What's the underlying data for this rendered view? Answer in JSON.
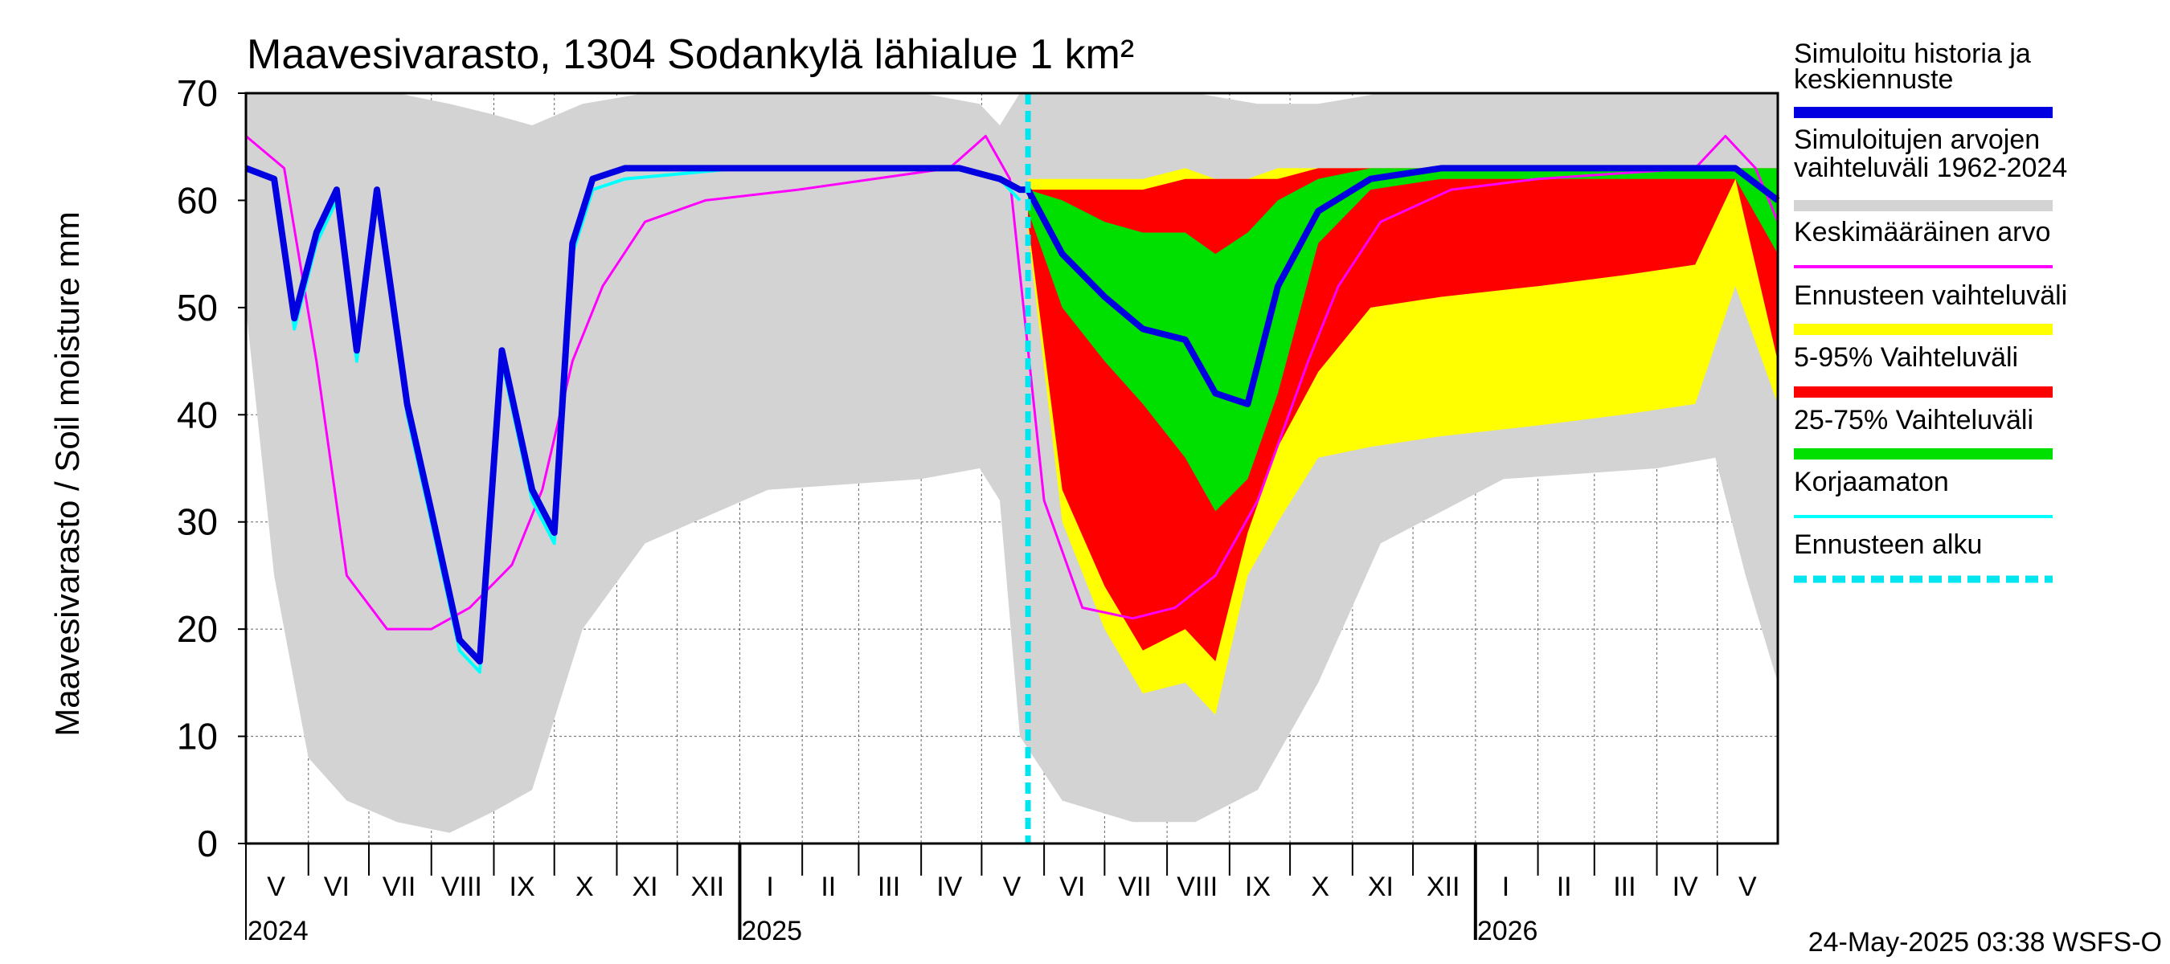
{
  "chart_data": {
    "type": "area",
    "title": "Maavesivarasto, 1304 Sodankylä lähialue 1 km²",
    "ylabel": "Maavesivarasto / Soil moisture   mm",
    "ylim": [
      0,
      70
    ],
    "yticks": [
      "0",
      "10",
      "20",
      "30",
      "40",
      "50",
      "60",
      "70"
    ],
    "xlim": [
      "2024-05-01",
      "2026-05-31"
    ],
    "forecast_start": "2025-05-24",
    "month_labels": [
      {
        "label": "V",
        "date": "2024-05-16"
      },
      {
        "label": "VI",
        "date": "2024-06-15"
      },
      {
        "label": "VII",
        "date": "2024-07-16"
      },
      {
        "label": "VIII",
        "date": "2024-08-16"
      },
      {
        "label": "IX",
        "date": "2024-09-15"
      },
      {
        "label": "X",
        "date": "2024-10-16"
      },
      {
        "label": "XI",
        "date": "2024-11-15"
      },
      {
        "label": "XII",
        "date": "2024-12-16"
      },
      {
        "label": "I",
        "date": "2025-01-16"
      },
      {
        "label": "II",
        "date": "2025-02-14"
      },
      {
        "label": "III",
        "date": "2025-03-16"
      },
      {
        "label": "IV",
        "date": "2025-04-15"
      },
      {
        "label": "V",
        "date": "2025-05-16"
      },
      {
        "label": "VI",
        "date": "2025-06-15"
      },
      {
        "label": "VII",
        "date": "2025-07-16"
      },
      {
        "label": "VIII",
        "date": "2025-08-16"
      },
      {
        "label": "IX",
        "date": "2025-09-15"
      },
      {
        "label": "X",
        "date": "2025-10-16"
      },
      {
        "label": "XI",
        "date": "2025-11-15"
      },
      {
        "label": "XII",
        "date": "2025-12-16"
      },
      {
        "label": "I",
        "date": "2026-01-16"
      },
      {
        "label": "II",
        "date": "2026-02-14"
      },
      {
        "label": "III",
        "date": "2026-03-16"
      },
      {
        "label": "IV",
        "date": "2026-04-15"
      },
      {
        "label": "V",
        "date": "2026-05-16"
      }
    ],
    "year_labels": [
      {
        "label": "2024",
        "date": "2024-05-01"
      },
      {
        "label": "2025",
        "date": "2025-01-01"
      },
      {
        "label": "2026",
        "date": "2026-01-01"
      }
    ],
    "legend": [
      {
        "label": "Simuloitu historia ja keskiennuste",
        "color": "#0000e0",
        "style": "thick"
      },
      {
        "label": "Simuloitujen arvojen vaihteluväli 1962-2024",
        "color": "#d3d3d3",
        "style": "thick"
      },
      {
        "label": "Keskimääräinen arvo",
        "color": "#ff00ff",
        "style": "thin"
      },
      {
        "label": "Ennusteen vaihteluväli",
        "color": "#ffff00",
        "style": "thick"
      },
      {
        "label": "5-95% Vaihteluväli",
        "color": "#ff0000",
        "style": "thick"
      },
      {
        "label": "25-75% Vaihteluväli",
        "color": "#00e000",
        "style": "thick"
      },
      {
        "label": "Korjaamaton",
        "color": "#00ffff",
        "style": "thin"
      },
      {
        "label": "Ennusteen alku",
        "color": "#00e5ee",
        "style": "dashed"
      }
    ],
    "series": [
      {
        "name": "Simuloitujen arvojen vaihteluväli 1962-2024",
        "color": "#d3d3d3",
        "kind": "band",
        "x": [
          "2024-05-01",
          "2024-05-15",
          "2024-06-01",
          "2024-06-20",
          "2024-07-15",
          "2024-08-10",
          "2024-09-01",
          "2024-09-20",
          "2024-10-15",
          "2024-11-15",
          "2025-01-15",
          "2025-04-01",
          "2025-04-30",
          "2025-05-10",
          "2025-05-20",
          "2025-06-10",
          "2025-07-15",
          "2025-08-15",
          "2025-09-15",
          "2025-10-15",
          "2025-11-15",
          "2026-01-15",
          "2026-04-01",
          "2026-04-30",
          "2026-05-15",
          "2026-05-31"
        ],
        "low": [
          50,
          25,
          8,
          4,
          2,
          1,
          3,
          5,
          20,
          28,
          33,
          34,
          35,
          32,
          10,
          4,
          2,
          2,
          5,
          15,
          28,
          34,
          35,
          36,
          25,
          15
        ],
        "high": [
          70,
          70,
          70,
          70,
          70,
          69,
          68,
          67,
          69,
          70,
          70,
          70,
          69,
          67,
          70,
          70,
          70,
          70,
          69,
          69,
          70,
          70,
          70,
          70,
          70,
          70
        ]
      },
      {
        "name": "Ennusteen vaihteluväli",
        "color": "#ffff00",
        "kind": "band",
        "x": [
          "2025-05-24",
          "2025-06-10",
          "2025-07-01",
          "2025-07-20",
          "2025-08-10",
          "2025-08-25",
          "2025-09-10",
          "2025-09-25",
          "2025-10-15",
          "2025-11-10",
          "2025-12-15",
          "2026-02-01",
          "2026-03-15",
          "2026-04-20",
          "2026-05-10",
          "2026-05-31"
        ],
        "low": [
          57,
          30,
          20,
          14,
          15,
          12,
          25,
          30,
          36,
          37,
          38,
          39,
          40,
          41,
          52,
          41
        ],
        "high": [
          62,
          62,
          62,
          62,
          63,
          62,
          62,
          63,
          63,
          63,
          63,
          63,
          63,
          63,
          63,
          63
        ]
      },
      {
        "name": "5-95% Vaihteluväli",
        "color": "#ff0000",
        "kind": "band",
        "x": [
          "2025-05-24",
          "2025-06-10",
          "2025-07-01",
          "2025-07-20",
          "2025-08-10",
          "2025-08-25",
          "2025-09-10",
          "2025-09-25",
          "2025-10-15",
          "2025-11-10",
          "2025-12-15",
          "2026-02-01",
          "2026-03-15",
          "2026-04-20",
          "2026-05-10",
          "2026-05-31"
        ],
        "low": [
          58,
          33,
          24,
          18,
          20,
          17,
          29,
          37,
          44,
          50,
          51,
          52,
          53,
          54,
          62,
          45
        ],
        "high": [
          61,
          61,
          61,
          61,
          62,
          62,
          62,
          62,
          63,
          63,
          63,
          63,
          63,
          63,
          63,
          63
        ]
      },
      {
        "name": "25-75% Vaihteluväli",
        "color": "#00e000",
        "kind": "band",
        "x": [
          "2025-05-24",
          "2025-06-10",
          "2025-07-01",
          "2025-07-20",
          "2025-08-10",
          "2025-08-25",
          "2025-09-10",
          "2025-09-25",
          "2025-10-15",
          "2025-11-10",
          "2025-12-15",
          "2026-02-01",
          "2026-03-15",
          "2026-04-20",
          "2026-05-10",
          "2026-05-31"
        ],
        "low": [
          59,
          50,
          45,
          41,
          36,
          31,
          34,
          42,
          56,
          61,
          62,
          62,
          62,
          62,
          62,
          55
        ],
        "high": [
          61,
          60,
          58,
          57,
          57,
          55,
          57,
          60,
          62,
          63,
          63,
          63,
          63,
          63,
          63,
          63
        ]
      },
      {
        "name": "Keskimääräinen arvo",
        "color": "#ff00ff",
        "kind": "line",
        "width": 3,
        "x": [
          "2024-05-01",
          "2024-05-20",
          "2024-06-05",
          "2024-06-20",
          "2024-07-10",
          "2024-08-01",
          "2024-08-20",
          "2024-09-10",
          "2024-09-25",
          "2024-10-10",
          "2024-10-25",
          "2024-11-15",
          "2024-12-15",
          "2025-01-30",
          "2025-04-15",
          "2025-05-03",
          "2025-05-15",
          "2025-06-01",
          "2025-06-20",
          "2025-07-15",
          "2025-08-05",
          "2025-08-25",
          "2025-09-15",
          "2025-10-10",
          "2025-10-25",
          "2025-11-15",
          "2025-12-20",
          "2026-02-01",
          "2026-04-20",
          "2026-05-05",
          "2026-05-20",
          "2026-05-31"
        ],
        "y": [
          66,
          63,
          45,
          25,
          20,
          20,
          22,
          26,
          33,
          45,
          52,
          58,
          60,
          61,
          63,
          66,
          62,
          32,
          22,
          21,
          22,
          25,
          32,
          45,
          52,
          58,
          61,
          62,
          63,
          66,
          63,
          58
        ]
      },
      {
        "name": "Korjaamaton",
        "color": "#00ffff",
        "kind": "line",
        "width": 4,
        "x": [
          "2024-05-01",
          "2024-05-15",
          "2024-05-25",
          "2024-06-05",
          "2024-06-15",
          "2024-06-25",
          "2024-07-05",
          "2024-07-20",
          "2024-08-01",
          "2024-08-15",
          "2024-08-25",
          "2024-09-05",
          "2024-09-20",
          "2024-10-01",
          "2024-10-10",
          "2024-10-20",
          "2024-11-05",
          "2025-01-01",
          "2025-03-01",
          "2025-04-20",
          "2025-05-10",
          "2025-05-20"
        ],
        "y": [
          63,
          62,
          48,
          56,
          60,
          45,
          60,
          40,
          30,
          18,
          16,
          45,
          32,
          28,
          55,
          61,
          62,
          63,
          63,
          63,
          62,
          60
        ]
      },
      {
        "name": "Simuloitu historia ja keskiennuste",
        "color": "#0000e0",
        "kind": "line",
        "width": 8,
        "x": [
          "2024-05-01",
          "2024-05-15",
          "2024-05-25",
          "2024-06-05",
          "2024-06-15",
          "2024-06-25",
          "2024-07-05",
          "2024-07-20",
          "2024-08-01",
          "2024-08-15",
          "2024-08-25",
          "2024-09-05",
          "2024-09-20",
          "2024-10-01",
          "2024-10-10",
          "2024-10-20",
          "2024-11-05",
          "2025-01-01",
          "2025-03-01",
          "2025-04-20",
          "2025-05-10",
          "2025-05-20",
          "2025-05-24",
          "2025-06-10",
          "2025-07-01",
          "2025-07-20",
          "2025-08-10",
          "2025-08-25",
          "2025-09-10",
          "2025-09-25",
          "2025-10-15",
          "2025-11-10",
          "2025-12-15",
          "2026-02-01",
          "2026-03-15",
          "2026-04-20",
          "2026-05-10",
          "2026-05-31"
        ],
        "y": [
          63,
          62,
          49,
          57,
          61,
          46,
          61,
          41,
          31,
          19,
          17,
          46,
          33,
          29,
          56,
          62,
          63,
          63,
          63,
          63,
          62,
          61,
          61,
          55,
          51,
          48,
          47,
          42,
          41,
          52,
          59,
          62,
          63,
          63,
          63,
          63,
          63,
          60
        ]
      }
    ]
  },
  "footer": {
    "timestamp": "24-May-2025 03:38 WSFS-O"
  }
}
